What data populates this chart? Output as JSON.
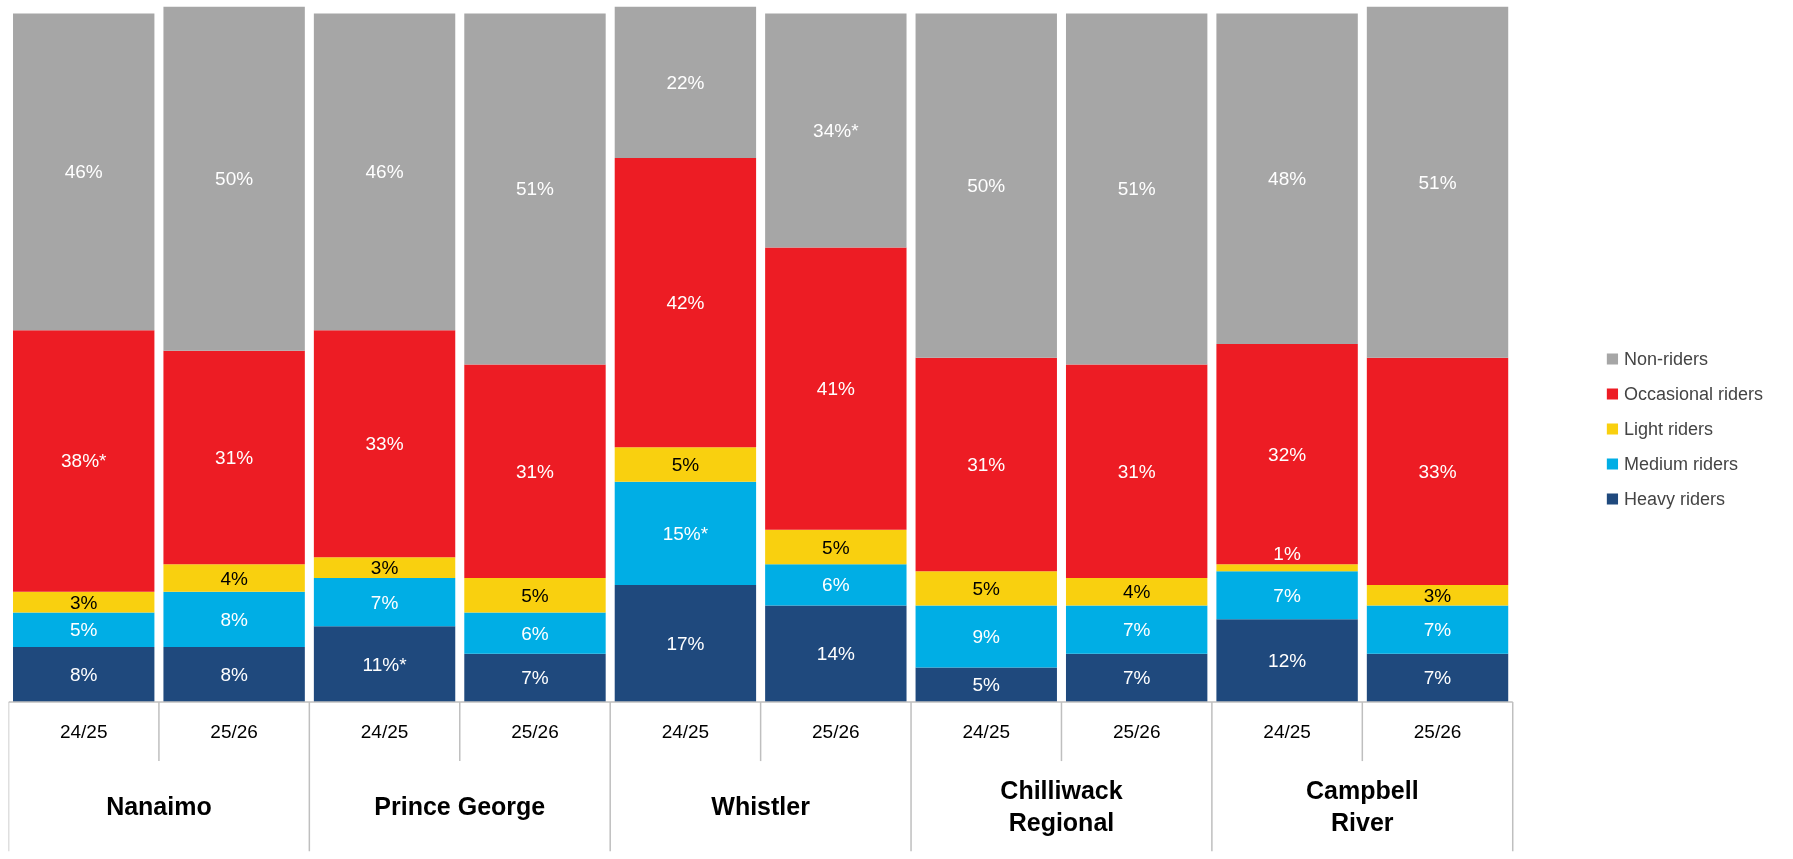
{
  "chart_data": {
    "type": "bar",
    "stacked": true,
    "legend": "right",
    "categories": [
      "24/25",
      "25/26",
      "24/25",
      "25/26",
      "24/25",
      "25/26",
      "24/25",
      "25/26",
      "24/25",
      "25/26"
    ],
    "annotations": [
      "Nanaimo",
      "Prince George",
      "Whistler",
      "Chilliwack\nRegional",
      "Campbell\nRiver"
    ],
    "series": [
      {
        "name": "Heavy riders",
        "color": "#1f497d",
        "values": [
          8,
          8,
          11,
          7,
          17,
          14,
          5,
          7,
          12,
          7
        ],
        "value_labels": [
          "8%",
          "8%",
          "11%*",
          "7%",
          "17%",
          "14%",
          "5%",
          "7%",
          "12%",
          "7%"
        ]
      },
      {
        "name": "Medium riders",
        "color": "#00aee5",
        "values": [
          5,
          8,
          7,
          6,
          15,
          6,
          9,
          7,
          7,
          7
        ],
        "value_labels": [
          "5%",
          "8%",
          "7%",
          "6%",
          "15%*",
          "6%",
          "9%",
          "7%",
          "7%",
          "7%"
        ]
      },
      {
        "name": "Light riders",
        "color": "#f9d00f",
        "values": [
          3,
          4,
          3,
          5,
          5,
          5,
          5,
          4,
          1,
          3
        ],
        "value_labels": [
          "3%",
          "4%",
          "3%",
          "5%",
          "5%",
          "5%",
          "5%",
          "4%",
          "1%",
          "3%"
        ]
      },
      {
        "name": "Occasional riders",
        "color": "#ed1c24",
        "values": [
          38,
          31,
          33,
          31,
          42,
          41,
          31,
          31,
          32,
          33
        ],
        "value_labels": [
          "38%*",
          "31%",
          "33%",
          "31%",
          "42%",
          "41%",
          "31%",
          "31%",
          "32%",
          "33%"
        ]
      },
      {
        "name": "Non-riders",
        "color": "#a6a6a6",
        "values": [
          46,
          50,
          46,
          51,
          22,
          34,
          50,
          51,
          48,
          51
        ],
        "value_labels": [
          "46%",
          "50%",
          "46%",
          "51%",
          "22%",
          "34%*",
          "50%",
          "51%",
          "48%",
          "51%"
        ]
      }
    ]
  }
}
